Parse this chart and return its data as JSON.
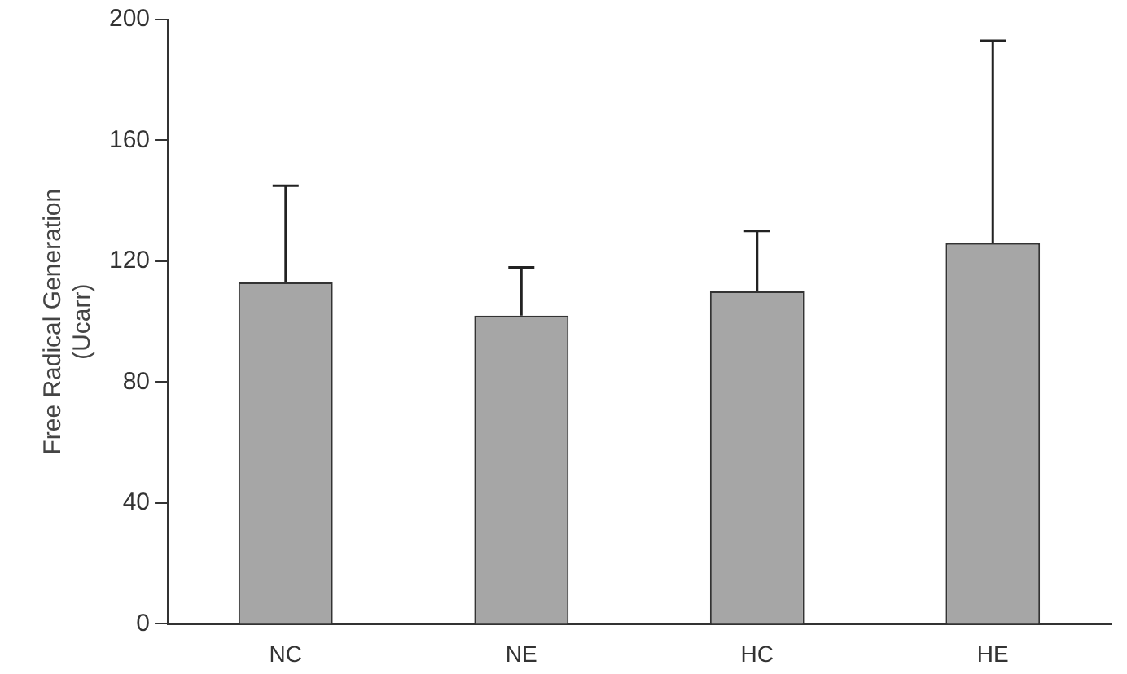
{
  "chart_data": {
    "type": "bar",
    "ylabel": "Free Radical Generation (Ucarr)",
    "categories": [
      "NC",
      "NE",
      "HC",
      "HE"
    ],
    "values": [
      113,
      102,
      110,
      126
    ],
    "errors": [
      [
        113,
        145
      ],
      [
        102,
        118
      ],
      [
        110,
        130
      ],
      [
        126,
        193
      ]
    ],
    "color": "#a6a6a6",
    "ylim": [
      0,
      200
    ],
    "yticks": [
      0,
      40,
      80,
      120,
      160,
      200
    ],
    "grid": false,
    "legend": false
  }
}
